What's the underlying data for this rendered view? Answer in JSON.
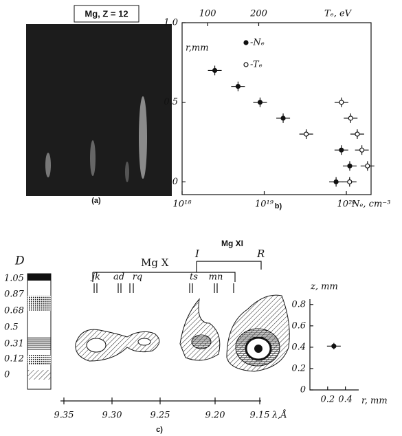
{
  "panel_a": {
    "label": "Mg, Z = 12",
    "caption": "(a)"
  },
  "chart_data": [
    {
      "type": "scatter",
      "caption": "b)",
      "x_label": "Nₑ, cm⁻³",
      "x2_label": "Tₑ, eV",
      "y_label": "r,mm",
      "x_scale": "log",
      "xlim": [
        1e+18,
        2e+20
      ],
      "xticks": [
        {
          "value": 1e+18,
          "label": "10¹⁸"
        },
        {
          "value": 1e+19,
          "label": "10¹⁹"
        },
        {
          "value": 1e+20,
          "label": "10²⁰"
        }
      ],
      "x2lim": [
        50,
        420
      ],
      "x2ticks": [
        100,
        200
      ],
      "ylim": [
        -0.08,
        1.0
      ],
      "yticks": [
        {
          "value": 1.0,
          "label": "1.0"
        },
        0.5,
        0
      ],
      "legend": "upper center",
      "series": [
        {
          "name": "-Nₑ",
          "marker": "filled",
          "color": "#111111",
          "yerr": 0.03,
          "x": [
            2.5e+18,
            4.8e+18,
            8.9e+18,
            1.7e+19,
            8.7e+19,
            1.1e+20,
            7.5e+19
          ],
          "values": [
            0.7,
            0.6,
            0.5,
            0.4,
            0.2,
            0.1,
            0
          ]
        },
        {
          "name": "-Tₑ",
          "marker": "open",
          "color": "#111111",
          "axis": "x2",
          "yerr": 0.03,
          "x": [
            293,
            362,
            380,
            393,
            402,
            413,
            378
          ],
          "values": [
            0.3,
            0.5,
            0.4,
            0.3,
            0.2,
            0.1,
            0
          ]
        }
      ]
    },
    {
      "type": "scatter",
      "x_label": "r, mm",
      "y_label": "z, mm",
      "xlim": [
        0,
        0.55
      ],
      "xticks": [
        0.2,
        0.4
      ],
      "ylim": [
        0,
        0.85
      ],
      "yticks": [
        0,
        0.2,
        0.4,
        0.6,
        0.8
      ],
      "series": [
        {
          "marker": "filled",
          "color": "#111111",
          "yerr": 0.03,
          "x": [
            0.27
          ],
          "values": [
            0.41
          ]
        }
      ]
    }
  ],
  "panel_c": {
    "caption": "c)",
    "density_label": "D",
    "levels": [
      "1.05",
      "0.87",
      "0.68",
      "0.5",
      "0.31",
      "0.12",
      "0"
    ],
    "ion_mg10": "Mg X",
    "ion_mg11": "Mg XI",
    "lines": [
      "jk",
      "ad",
      "rq",
      "ts",
      "mn"
    ],
    "line_I": "I",
    "line_R": "R",
    "wavelength_ticks": [
      "9.35",
      "9.30",
      "9.25",
      "9.20",
      "9.15"
    ],
    "wavelength_label": "λ,Å"
  }
}
